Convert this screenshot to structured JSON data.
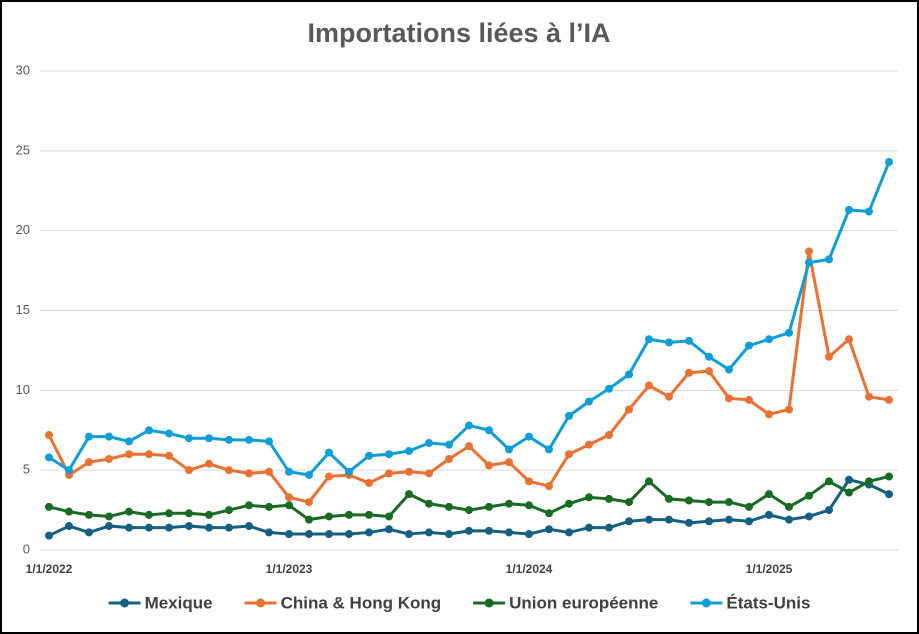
{
  "chart_data": {
    "type": "line",
    "title": "Importations liées à l’IA",
    "categories": [
      "1/1/2022",
      null,
      null,
      null,
      null,
      null,
      null,
      null,
      null,
      null,
      null,
      null,
      "1/1/2023",
      null,
      null,
      null,
      null,
      null,
      null,
      null,
      null,
      null,
      null,
      null,
      "1/1/2024",
      null,
      null,
      null,
      null,
      null,
      null,
      null,
      null,
      null,
      null,
      null,
      "1/1/2025",
      null,
      null,
      null,
      null,
      null,
      null
    ],
    "series": [
      {
        "name": "Mexique",
        "color": "#156082",
        "values": [
          0.9,
          1.5,
          1.1,
          1.5,
          1.4,
          1.4,
          1.4,
          1.5,
          1.4,
          1.4,
          1.5,
          1.1,
          1.0,
          1.0,
          1.0,
          1.0,
          1.1,
          1.3,
          1.0,
          1.1,
          1.0,
          1.2,
          1.2,
          1.1,
          1.0,
          1.3,
          1.1,
          1.4,
          1.4,
          1.8,
          1.9,
          1.9,
          1.7,
          1.8,
          1.9,
          1.8,
          2.2,
          1.9,
          2.1,
          2.5,
          4.4,
          4.1,
          3.5
        ]
      },
      {
        "name": "China & Hong Kong",
        "color": "#e97132",
        "values": [
          7.2,
          4.7,
          5.5,
          5.7,
          6.0,
          6.0,
          5.9,
          5.0,
          5.4,
          5.0,
          4.8,
          4.9,
          3.3,
          3.0,
          4.6,
          4.7,
          4.2,
          4.8,
          4.9,
          4.8,
          5.7,
          6.5,
          5.3,
          5.5,
          4.3,
          4.0,
          6.0,
          6.6,
          7.2,
          8.8,
          10.3,
          9.6,
          11.1,
          11.2,
          9.5,
          9.4,
          8.5,
          8.8,
          18.7,
          12.1,
          13.2,
          9.6,
          9.4
        ]
      },
      {
        "name": "Union européenne",
        "color": "#196b24",
        "values": [
          2.7,
          2.4,
          2.2,
          2.1,
          2.4,
          2.2,
          2.3,
          2.3,
          2.2,
          2.5,
          2.8,
          2.7,
          2.8,
          1.9,
          2.1,
          2.2,
          2.2,
          2.1,
          3.5,
          2.9,
          2.7,
          2.5,
          2.7,
          2.9,
          2.8,
          2.3,
          2.9,
          3.3,
          3.2,
          3.0,
          4.3,
          3.2,
          3.1,
          3.0,
          3.0,
          2.7,
          3.5,
          2.7,
          3.4,
          4.3,
          3.6,
          4.3,
          4.6
        ]
      },
      {
        "name": "États-Unis",
        "color": "#0f9ed5",
        "values": [
          5.8,
          5.0,
          7.1,
          7.1,
          6.8,
          7.5,
          7.3,
          7.0,
          7.0,
          6.9,
          6.9,
          6.8,
          4.9,
          4.7,
          6.1,
          4.9,
          5.9,
          6.0,
          6.2,
          6.7,
          6.6,
          7.8,
          7.5,
          6.3,
          7.1,
          6.3,
          8.4,
          9.3,
          10.1,
          11.0,
          13.2,
          13.0,
          13.1,
          12.1,
          11.3,
          12.8,
          13.2,
          13.6,
          18.0,
          18.2,
          21.3,
          21.2,
          24.3
        ]
      }
    ],
    "ylim": [
      0,
      30
    ],
    "yticks": [
      0,
      5,
      10,
      15,
      20,
      25,
      30
    ],
    "grid": true
  }
}
